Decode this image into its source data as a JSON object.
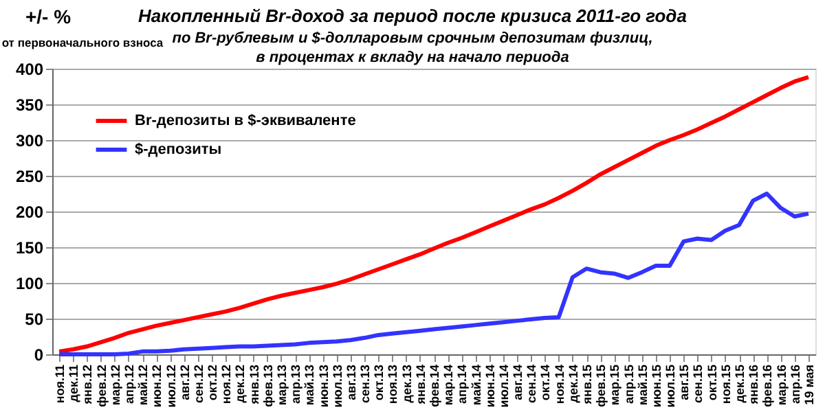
{
  "chart_data": {
    "type": "line",
    "title": "Накопленный Br-доход за период после кризиса 2011-го года",
    "subtitle": [
      "по Br-рублевым  и $-долларовым  срочным  депозитам  физлиц,",
      "в процентах к вкладу на начало  периода"
    ],
    "ylabel": "+/- %",
    "annotations": [
      "от первоначального взноса"
    ],
    "categories": [
      "ноя.11",
      "дек.11",
      "янв.12",
      "фев.12",
      "мар.12",
      "апр.12",
      "май.12",
      "июн.12",
      "июл.12",
      "авг.12",
      "сен.12",
      "окт.12",
      "ноя.12",
      "дек.12",
      "янв.13",
      "фев.13",
      "мар.13",
      "апр.13",
      "май.13",
      "июн.13",
      "июл.13",
      "авг.13",
      "сен.13",
      "окт.13",
      "ноя.13",
      "дек.13",
      "янв.14",
      "фев.14",
      "мар.14",
      "апр.14",
      "май.14",
      "июн.14",
      "июл.14",
      "авг.14",
      "сен.14",
      "окт.14",
      "ноя.14",
      "дек.14",
      "янв.15",
      "фев.15",
      "мар.15",
      "апр.15",
      "май.15",
      "июн.15",
      "июл.15",
      "авг.15",
      "сен.15",
      "окт.15",
      "ноя.15",
      "дек.15",
      "янв.16",
      "фев.16",
      "мар.16",
      "апр.16",
      "19 мая"
    ],
    "series": [
      {
        "name": "Br-депозиты в $-эквиваленте",
        "color": "#ff0000",
        "values": [
          4,
          7,
          11,
          17,
          23,
          30,
          35,
          40,
          44,
          48,
          52,
          56,
          60,
          65,
          71,
          77,
          82,
          86,
          90,
          94,
          99,
          105,
          112,
          119,
          126,
          133,
          140,
          148,
          156,
          163,
          171,
          179,
          187,
          195,
          203,
          210,
          219,
          229,
          240,
          252,
          262,
          272,
          282,
          292,
          300,
          307,
          315,
          324,
          333,
          343,
          353,
          363,
          373,
          382,
          388
        ]
      },
      {
        "name": "$-депозиты",
        "color": "#3333ff",
        "values": [
          0,
          0,
          0,
          0,
          0,
          1,
          4,
          4,
          5,
          7,
          8,
          9,
          10,
          11,
          11,
          12,
          13,
          14,
          16,
          17,
          18,
          20,
          23,
          27,
          29,
          31,
          33,
          35,
          37,
          39,
          41,
          43,
          45,
          47,
          49,
          51,
          52,
          108,
          120,
          115,
          113,
          107,
          115,
          124,
          124,
          158,
          162,
          160,
          173,
          181,
          215,
          225,
          205,
          193,
          197
        ]
      }
    ],
    "ylim": [
      0,
      400
    ],
    "yticks": [
      0,
      50,
      100,
      150,
      200,
      250,
      300,
      350,
      400
    ],
    "grid": "y",
    "legend": "top left"
  }
}
